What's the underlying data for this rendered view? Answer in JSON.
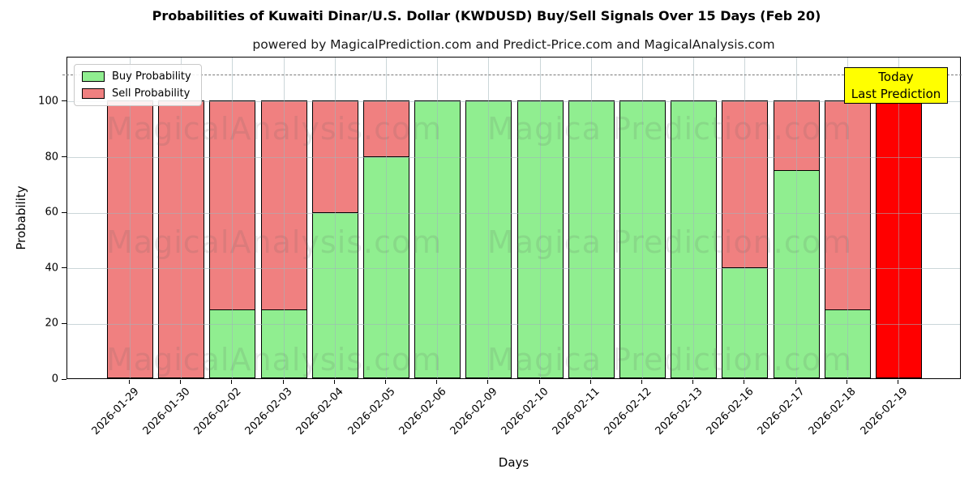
{
  "title": "Probabilities of Kuwaiti Dinar/U.S. Dollar (KWDUSD) Buy/Sell Signals Over 15 Days (Feb 20)",
  "subtitle": "powered by MagicalPrediction.com and Predict-Price.com and MagicalAnalysis.com",
  "legend": {
    "buy_label": "Buy Probability",
    "sell_label": "Sell Probability"
  },
  "annotation_box": {
    "line1": "Today",
    "line2": "Last Prediction"
  },
  "axes": {
    "x_label": "Days",
    "y_label": "Probability",
    "y_ticks": [
      0,
      20,
      40,
      60,
      80,
      100
    ],
    "y_max": 116,
    "dashed_line_y": 110
  },
  "colors": {
    "buy": "#90EE90",
    "sell": "#F08080",
    "last_prediction": "#FF0000",
    "today_box_bg": "#FFFF00",
    "grid": "#B4C4C8",
    "dashed": "#7A7A7A"
  },
  "watermarks": {
    "left_text": "MagicalAnalysis.com",
    "right_text": "Magica Prediction.com"
  },
  "chart_data": {
    "type": "bar",
    "stacked": true,
    "title": "Probabilities of Kuwaiti Dinar/U.S. Dollar (KWDUSD) Buy/Sell Signals Over 15 Days (Feb 20)",
    "xlabel": "Days",
    "ylabel": "Probability",
    "ylim": [
      0,
      116
    ],
    "grid": true,
    "legend_position": "upper-left",
    "dashed_reference_line": 110,
    "highlight_last_bar": true,
    "categories": [
      "2026-01-29",
      "2026-01-30",
      "2026-02-02",
      "2026-02-03",
      "2026-02-04",
      "2026-02-05",
      "2026-02-06",
      "2026-02-09",
      "2026-02-10",
      "2026-02-11",
      "2026-02-12",
      "2026-02-13",
      "2026-02-16",
      "2026-02-17",
      "2026-02-18",
      "2026-02-19"
    ],
    "series": [
      {
        "name": "Buy Probability",
        "color": "#90EE90",
        "values": [
          0,
          0,
          25,
          25,
          60,
          80,
          100,
          100,
          100,
          100,
          100,
          100,
          40,
          75,
          25,
          0
        ]
      },
      {
        "name": "Sell Probability",
        "color": "#F08080",
        "values": [
          100,
          100,
          75,
          75,
          40,
          20,
          0,
          0,
          0,
          0,
          0,
          0,
          60,
          25,
          75,
          100
        ]
      }
    ]
  }
}
